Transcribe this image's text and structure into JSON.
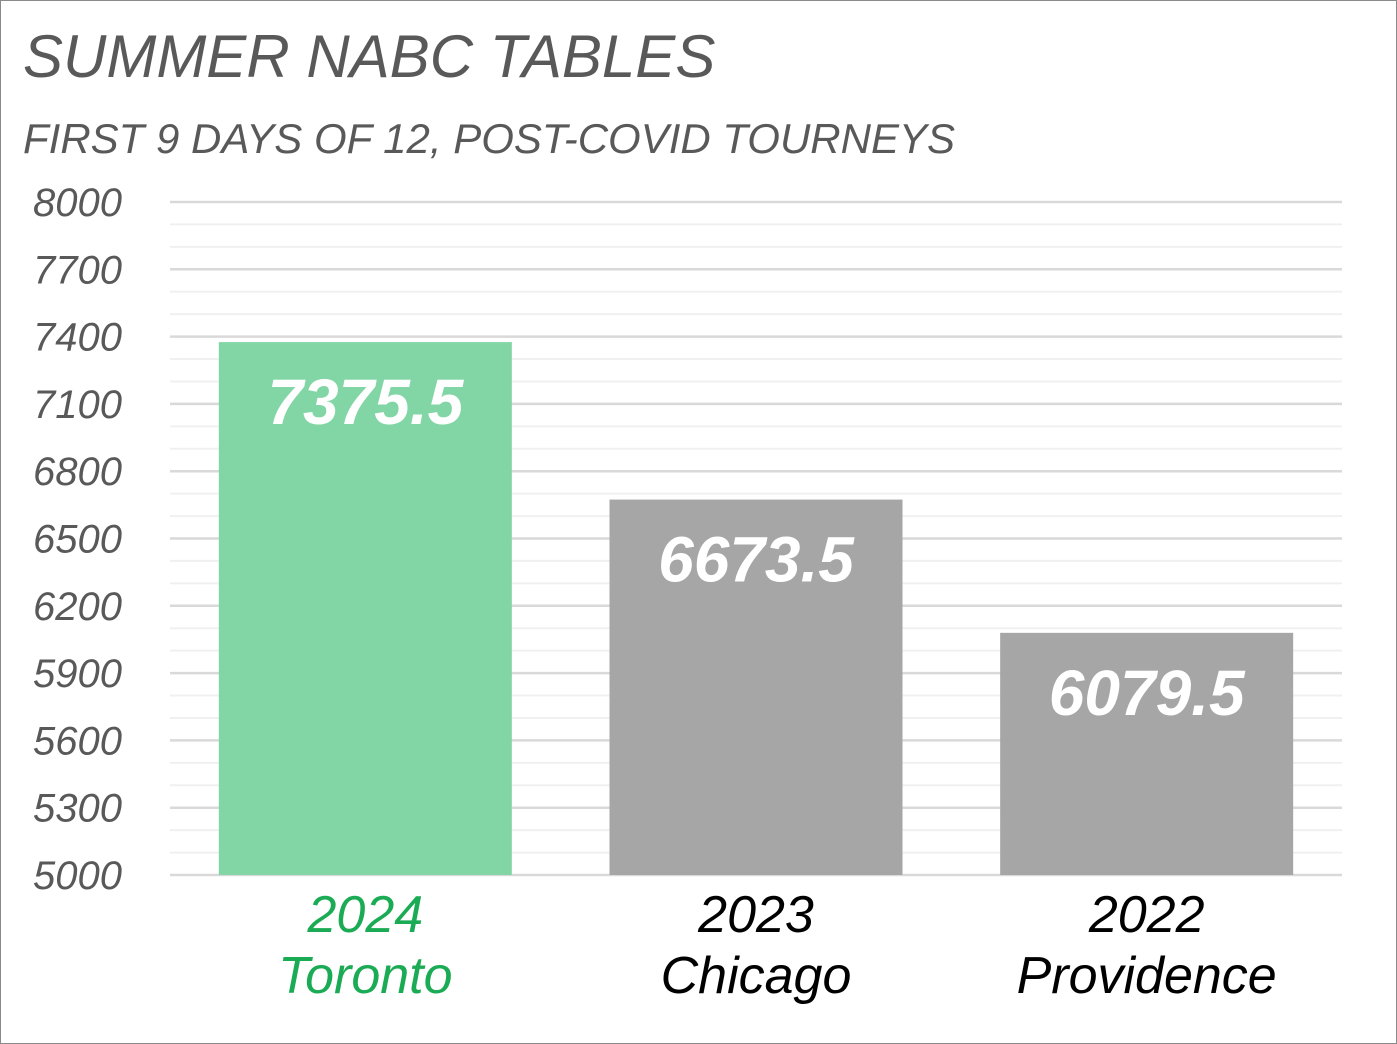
{
  "chart_data": {
    "type": "bar",
    "title": "SUMMER NABC TABLES",
    "subtitle": "FIRST 9 DAYS OF 12, POST-COVID TOURNEYS",
    "categories": [
      [
        "2024",
        "Toronto"
      ],
      [
        "2023",
        "Chicago"
      ],
      [
        "2022",
        "Providence"
      ]
    ],
    "values": [
      7375.5,
      6673.5,
      6079.5
    ],
    "data_labels": [
      "7375.5",
      "6673.5",
      "6079.5"
    ],
    "bar_colors": [
      "#82d6a6",
      "#a6a6a6",
      "#a6a6a6"
    ],
    "category_label_colors": [
      "#1aab54",
      "#000000",
      "#000000"
    ],
    "ylim": [
      5000,
      8000
    ],
    "yticks": [
      5000,
      5300,
      5600,
      5900,
      6200,
      6500,
      6800,
      7100,
      7400,
      7700,
      8000
    ],
    "minor_grid_step": 100,
    "grid": true,
    "legend": "none",
    "xlabel": "",
    "ylabel": ""
  }
}
